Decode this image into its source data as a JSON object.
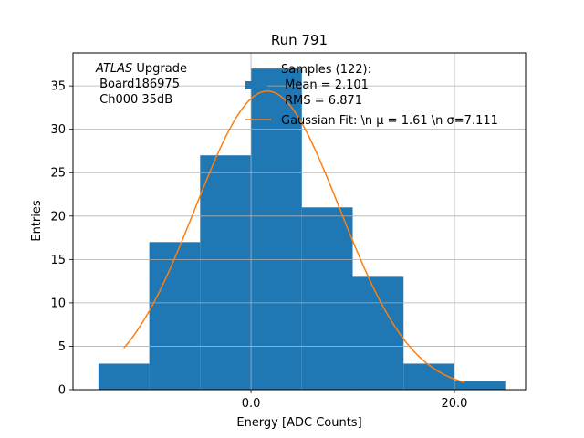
{
  "chart_data": {
    "type": "bar",
    "title": "Run 791",
    "xlabel": "Energy [ADC Counts]",
    "ylabel": "Entries",
    "xlim": [
      -17.5,
      27
    ],
    "ylim": [
      0,
      38.8
    ],
    "x_ticks": [
      0,
      20
    ],
    "x_tick_labels": [
      "0.0",
      "20.0"
    ],
    "y_ticks": [
      0,
      5,
      10,
      15,
      20,
      25,
      30,
      35
    ],
    "y_tick_labels": [
      "0",
      "5",
      "10",
      "15",
      "20",
      "25",
      "30",
      "35"
    ],
    "grid": true,
    "bins": [
      {
        "x0": -15,
        "x1": -10,
        "value": 3
      },
      {
        "x0": -10,
        "x1": -5,
        "value": 17
      },
      {
        "x0": -5,
        "x1": 0,
        "value": 27
      },
      {
        "x0": 0,
        "x1": 5,
        "value": 37
      },
      {
        "x0": 5,
        "x1": 10,
        "value": 21
      },
      {
        "x0": 10,
        "x1": 15,
        "value": 13
      },
      {
        "x0": 15,
        "x1": 20,
        "value": 3
      },
      {
        "x0": 20,
        "x1": 25,
        "value": 1
      }
    ],
    "fit": {
      "mu": 1.61,
      "sigma": 7.111,
      "amplitude": 34.4,
      "x_range": [
        -12.5,
        21
      ]
    },
    "colors": {
      "hist": "#1f77b4",
      "fit": "#ff7f0e",
      "grid": "#b0b0b0"
    },
    "legend": {
      "placement": "top-center",
      "entries": [
        {
          "kind": "patch",
          "lines": [
            "Samples (122):",
            " Mean = 2.101",
            " RMS = 6.871"
          ]
        },
        {
          "kind": "line",
          "lines": [
            "Gaussian Fit: \\n μ = 1.61 \\n σ=7.111"
          ]
        }
      ]
    },
    "annotation": {
      "line1_italic": "ATLAS",
      "line1_rest": " Upgrade",
      "line2": " Board186975",
      "line3": " Ch000 35dB"
    }
  }
}
